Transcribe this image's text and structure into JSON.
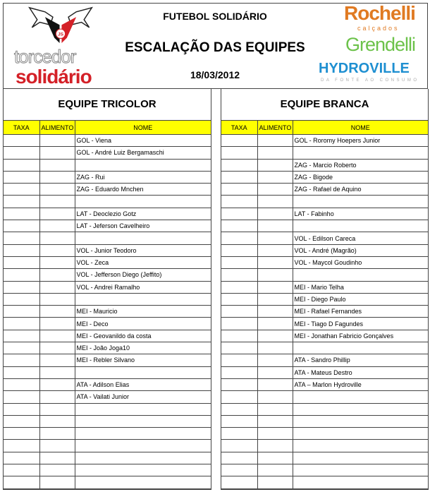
{
  "header": {
    "title": "FUTEBOL SOLIDÁRIO",
    "subtitle": "ESCALAÇÃO DAS EQUIPES",
    "date": "18/03/2012",
    "logo_left": {
      "line1": "torcedor",
      "line2": "solidário",
      "badge": "JS"
    },
    "sponsors": {
      "rochelli": "Rochelli",
      "rochelli_sub": "calçados",
      "grendelli": "Grendelli",
      "hydroville": "HYDROVILLE",
      "hydroville_sub": "DA FONTE AO CONSUMO"
    }
  },
  "columns": [
    "TAXA",
    "ALIMENTO",
    "NOME"
  ],
  "teams": [
    {
      "title": "EQUIPE TRICOLOR",
      "names": [
        "GOL - Viena",
        "GOL - André Luiz Bergamaschi",
        "",
        "ZAG - Rui",
        "ZAG - Eduardo Mnchen",
        "",
        "LAT - Deoclezio Gotz",
        "LAT - Jeferson Cavelheiro",
        "",
        "VOL - Junior Teodoro",
        "VOL - Zeca",
        "VOL - Jefferson Diego (Jeffito)",
        "VOL - Andrei Ramalho",
        "",
        "MEI - Mauricio",
        "MEI - Deco",
        "MEI - Geovanildo da costa",
        "MEI - João Joga10",
        "MEI - Rebler Silvano",
        "",
        "ATA - Adilson Elias",
        "ATA - Vailati Junior",
        "",
        "",
        "",
        "",
        "",
        "",
        ""
      ]
    },
    {
      "title": "EQUIPE BRANCA",
      "names": [
        "GOL - Roromy Hoepers Junior",
        "",
        "ZAG - Marcio Roberto",
        "ZAG - Bigode",
        "ZAG - Rafael de Aquino",
        "",
        "LAT - Fabinho",
        "",
        "VOL - Edilson Careca",
        "VOL - André (Magrão)",
        "VOL - Maycol Goudinho",
        "",
        "MEI - Mario Telha",
        "MEI - Diego Paulo",
        "MEI - Rafael Fernandes",
        "MEI - Tiago D Fagundes",
        "MEI - Jonathan Fabricio Gonçalves",
        "",
        "ATA - Sandro Phillip",
        "ATA - Mateus Destro",
        "ATA – Marlon Hydroville",
        "",
        "",
        "",
        "",
        "",
        "",
        "",
        ""
      ]
    }
  ],
  "colors": {
    "header_fill": "#ffff00",
    "brand_red": "#d42027",
    "rochelli": "#e07a22",
    "grendelli": "#6cc24a",
    "hydroville": "#1e8fd1"
  }
}
